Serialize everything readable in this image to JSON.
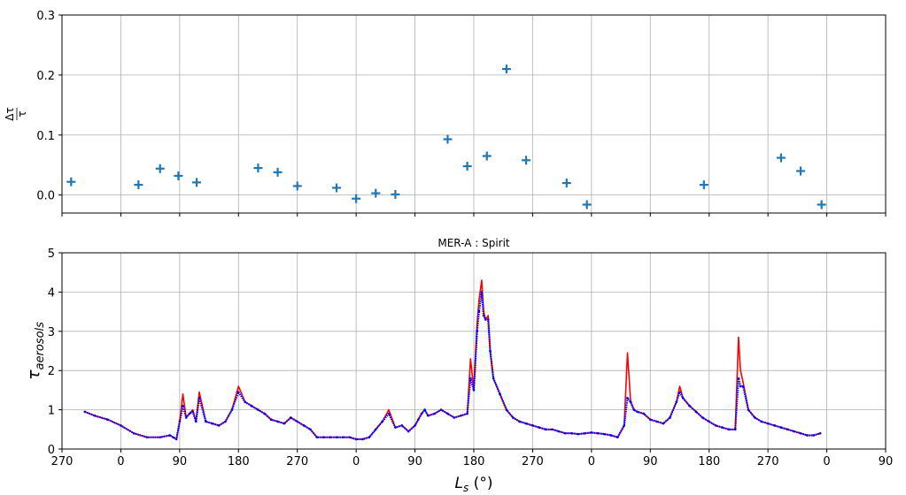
{
  "chart_data": [
    {
      "type": "scatter",
      "title": "",
      "xlabel": "",
      "ylabel": "Δτ/τ",
      "ylabel_num": "Δτ",
      "ylabel_den": "τ",
      "ylim": [
        -0.03,
        0.3
      ],
      "yticks": [
        0.0,
        0.1,
        0.2,
        0.3
      ],
      "ytick_labels": [
        "0.0",
        "0.1",
        "0.2",
        "0.3"
      ],
      "grid": true,
      "marker": "+",
      "color": "#1f77b4",
      "x_cumulative_ls": [
        284,
        387,
        420,
        448,
        476,
        570,
        600,
        630,
        690,
        720,
        750,
        780,
        860,
        890,
        920,
        950,
        980,
        1042,
        1073,
        1252,
        1370,
        1400,
        1432
      ],
      "x_ls": [
        14,
        117,
        150,
        178,
        206,
        300,
        330,
        0,
        60,
        90,
        120,
        150,
        230,
        260,
        290,
        320,
        350,
        52,
        83,
        262,
        20,
        50,
        82
      ],
      "y": [
        0.022,
        0.017,
        0.044,
        0.032,
        0.021,
        0.045,
        0.038,
        0.015,
        0.012,
        -0.006,
        0.003,
        0.001,
        0.093,
        0.048,
        0.065,
        0.21,
        0.058,
        0.02,
        -0.016,
        0.017,
        0.062,
        0.04,
        -0.016
      ]
    },
    {
      "type": "line",
      "title": "MER-A : Spirit",
      "xlabel": "L_s (°)",
      "xlabel_main": "L",
      "xlabel_sub": "s",
      "xlabel_unit": " (°)",
      "ylabel": "τ_aerosols",
      "ylabel_main": "τ",
      "ylabel_sub": "aerosols",
      "ylim": [
        0,
        5
      ],
      "yticks": [
        0,
        1,
        2,
        3,
        4,
        5
      ],
      "ytick_labels": [
        "0",
        "1",
        "2",
        "3",
        "4",
        "5"
      ],
      "xlim_cumulative": [
        270,
        1530
      ],
      "xtick_labels": [
        "270",
        "0",
        "90",
        "180",
        "270",
        "0",
        "90",
        "180",
        "270",
        "0",
        "90",
        "180",
        "270",
        "0",
        "90"
      ],
      "grid": true,
      "series": [
        {
          "color": "#ff0000",
          "style": "line",
          "x_cumulative_ls": [
            305,
            320,
            340,
            360,
            380,
            400,
            420,
            435,
            440,
            445,
            450,
            455,
            460,
            465,
            470,
            475,
            480,
            490,
            500,
            510,
            520,
            530,
            540,
            550,
            560,
            570,
            580,
            590,
            600,
            610,
            620,
            630,
            640,
            650,
            660,
            670,
            680,
            690,
            700,
            710,
            720,
            730,
            740,
            750,
            760,
            770,
            780,
            790,
            800,
            810,
            815,
            820,
            825,
            830,
            840,
            850,
            860,
            870,
            880,
            890,
            895,
            900,
            905,
            908,
            912,
            915,
            918,
            922,
            925,
            930,
            940,
            950,
            960,
            970,
            980,
            990,
            1000,
            1010,
            1020,
            1030,
            1040,
            1050,
            1060,
            1070,
            1080,
            1090,
            1100,
            1110,
            1120,
            1130,
            1135,
            1140,
            1145,
            1150,
            1160,
            1170,
            1180,
            1190,
            1200,
            1210,
            1215,
            1220,
            1230,
            1240,
            1250,
            1260,
            1270,
            1280,
            1290,
            1300,
            1305,
            1308,
            1312,
            1320,
            1330,
            1340,
            1350,
            1360,
            1370,
            1380,
            1390,
            1400,
            1410,
            1420,
            1430
          ],
          "y": [
            0.95,
            0.85,
            0.75,
            0.6,
            0.4,
            0.3,
            0.3,
            0.35,
            0.3,
            0.25,
            0.7,
            1.4,
            0.8,
            0.9,
            1.0,
            0.7,
            1.45,
            0.7,
            0.65,
            0.6,
            0.7,
            1.0,
            1.6,
            1.2,
            1.1,
            1.0,
            0.9,
            0.75,
            0.7,
            0.65,
            0.8,
            0.7,
            0.6,
            0.5,
            0.3,
            0.3,
            0.3,
            0.3,
            0.3,
            0.3,
            0.25,
            0.25,
            0.3,
            0.5,
            0.7,
            1.0,
            0.55,
            0.6,
            0.45,
            0.6,
            0.75,
            0.9,
            1.0,
            0.85,
            0.9,
            1.0,
            0.9,
            0.8,
            0.85,
            0.9,
            2.3,
            1.5,
            3.2,
            3.8,
            4.3,
            3.5,
            3.3,
            3.4,
            2.5,
            1.8,
            1.4,
            1.0,
            0.8,
            0.7,
            0.65,
            0.6,
            0.55,
            0.5,
            0.5,
            0.45,
            0.4,
            0.4,
            0.38,
            0.4,
            0.42,
            0.4,
            0.38,
            0.35,
            0.3,
            0.6,
            2.45,
            1.2,
            1.0,
            0.95,
            0.9,
            0.75,
            0.7,
            0.65,
            0.8,
            1.2,
            1.6,
            1.3,
            1.1,
            0.95,
            0.8,
            0.7,
            0.6,
            0.55,
            0.5,
            0.5,
            2.85,
            2.0,
            1.7,
            1.0,
            0.8,
            0.7,
            0.65,
            0.6,
            0.55,
            0.5,
            0.45,
            0.4,
            0.35,
            0.35,
            0.4
          ]
        },
        {
          "color": "#0000ff",
          "style": "points",
          "x_cumulative_ls": [
            305,
            320,
            340,
            360,
            380,
            400,
            420,
            435,
            440,
            445,
            450,
            455,
            460,
            465,
            470,
            475,
            480,
            490,
            500,
            510,
            520,
            530,
            540,
            550,
            560,
            570,
            580,
            590,
            600,
            610,
            620,
            630,
            640,
            650,
            660,
            670,
            680,
            690,
            700,
            710,
            720,
            730,
            740,
            750,
            760,
            770,
            780,
            790,
            800,
            810,
            815,
            820,
            825,
            830,
            840,
            850,
            860,
            870,
            880,
            890,
            895,
            900,
            905,
            908,
            912,
            915,
            918,
            922,
            925,
            930,
            940,
            950,
            960,
            970,
            980,
            990,
            1000,
            1010,
            1020,
            1030,
            1040,
            1050,
            1060,
            1070,
            1080,
            1090,
            1100,
            1110,
            1120,
            1130,
            1135,
            1140,
            1145,
            1150,
            1160,
            1170,
            1180,
            1190,
            1200,
            1210,
            1215,
            1220,
            1230,
            1240,
            1250,
            1260,
            1270,
            1280,
            1290,
            1300,
            1305,
            1308,
            1312,
            1320,
            1330,
            1340,
            1350,
            1360,
            1370,
            1380,
            1390,
            1400,
            1410,
            1420,
            1430
          ],
          "y": [
            0.95,
            0.85,
            0.75,
            0.6,
            0.4,
            0.3,
            0.3,
            0.35,
            0.3,
            0.25,
            0.7,
            1.1,
            0.8,
            0.9,
            0.95,
            0.7,
            1.3,
            0.7,
            0.65,
            0.6,
            0.7,
            1.0,
            1.45,
            1.2,
            1.1,
            1.0,
            0.9,
            0.75,
            0.7,
            0.65,
            0.8,
            0.7,
            0.6,
            0.5,
            0.3,
            0.3,
            0.3,
            0.3,
            0.3,
            0.3,
            0.25,
            0.25,
            0.3,
            0.5,
            0.7,
            0.9,
            0.55,
            0.6,
            0.45,
            0.6,
            0.75,
            0.9,
            1.0,
            0.85,
            0.9,
            1.0,
            0.9,
            0.8,
            0.85,
            0.9,
            1.8,
            1.5,
            3.0,
            3.5,
            4.0,
            3.4,
            3.3,
            3.3,
            2.5,
            1.8,
            1.4,
            1.0,
            0.8,
            0.7,
            0.65,
            0.6,
            0.55,
            0.5,
            0.5,
            0.45,
            0.4,
            0.4,
            0.38,
            0.4,
            0.42,
            0.4,
            0.38,
            0.35,
            0.3,
            0.6,
            1.3,
            1.2,
            1.0,
            0.95,
            0.9,
            0.75,
            0.7,
            0.65,
            0.8,
            1.2,
            1.45,
            1.3,
            1.1,
            0.95,
            0.8,
            0.7,
            0.6,
            0.55,
            0.5,
            0.5,
            1.8,
            1.6,
            1.6,
            1.0,
            0.8,
            0.7,
            0.65,
            0.6,
            0.55,
            0.5,
            0.45,
            0.4,
            0.35,
            0.35,
            0.4
          ]
        }
      ]
    }
  ]
}
